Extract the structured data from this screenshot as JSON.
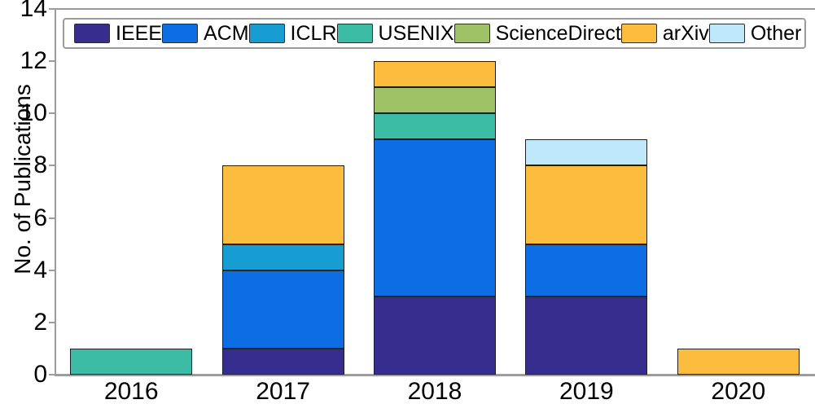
{
  "figure": {
    "background": "#ffffff",
    "axis_color": "#9c9c9c",
    "bar_edge_color": "#1f1f1f",
    "text_color": "#000000"
  },
  "chart_data": {
    "type": "bar",
    "stacked": true,
    "title": "",
    "xlabel": "",
    "ylabel": "No. of Publications",
    "categories": [
      "2016",
      "2017",
      "2018",
      "2019",
      "2020"
    ],
    "series": [
      {
        "name": "IEEE",
        "color": "#362D8F",
        "values": [
          0,
          1,
          3,
          3,
          0
        ]
      },
      {
        "name": "ACM",
        "color": "#0D6EE3",
        "values": [
          0,
          3,
          6,
          2,
          0
        ]
      },
      {
        "name": "ICLR",
        "color": "#189DD3",
        "values": [
          0,
          1,
          0,
          0,
          0
        ]
      },
      {
        "name": "USENIX",
        "color": "#3CBCA4",
        "values": [
          1,
          0,
          1,
          0,
          0
        ]
      },
      {
        "name": "ScienceDirect",
        "color": "#A0C266",
        "values": [
          0,
          0,
          1,
          0,
          0
        ]
      },
      {
        "name": "arXiv",
        "color": "#FCBD3F",
        "values": [
          0,
          3,
          1,
          3,
          1
        ]
      },
      {
        "name": "Other",
        "color": "#BFE9FA",
        "values": [
          0,
          0,
          0,
          1,
          0
        ]
      }
    ],
    "totals": [
      1,
      8,
      12,
      9,
      1
    ],
    "ylim": [
      0,
      14
    ],
    "yticks": [
      0,
      2,
      4,
      6,
      8,
      10,
      12,
      14
    ],
    "legend_position": "top",
    "grid": false
  }
}
